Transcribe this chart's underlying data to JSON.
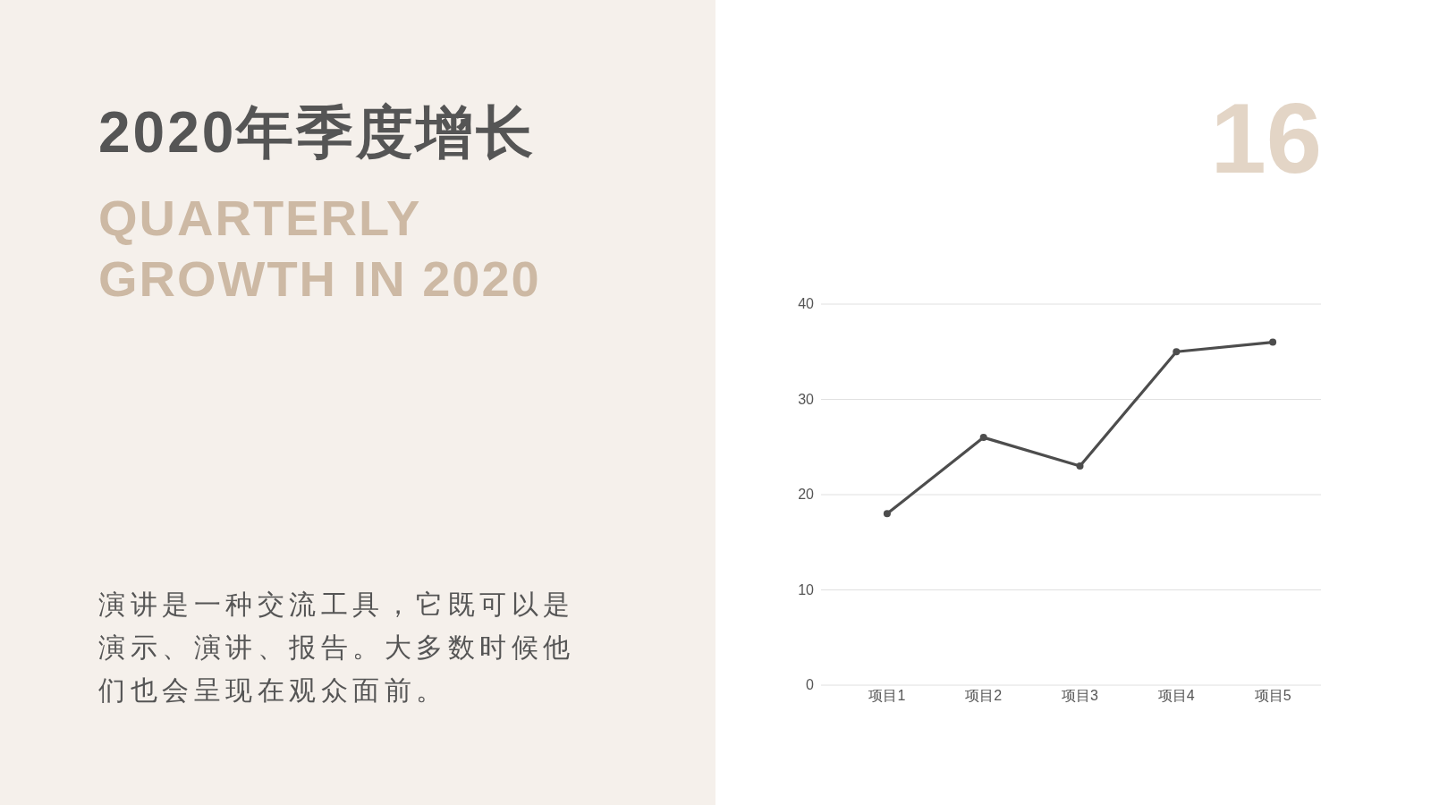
{
  "chart_data": {
    "type": "line",
    "title": "2020年季度增长",
    "subtitle": "QUARTERLY GROWTH IN 2020",
    "categories": [
      "项目1",
      "项目2",
      "项目3",
      "项目4",
      "项目5"
    ],
    "series": [
      {
        "color": "#4d4d4d",
        "values": [
          18,
          26,
          23,
          35,
          36
        ]
      }
    ],
    "ylim": [
      0,
      40
    ],
    "yticks": [
      0,
      10,
      20,
      30,
      40
    ],
    "grid": "y",
    "marker": "circle",
    "line_style": "solid",
    "annotations": [
      "16",
      "演讲是一种交流工具，它既可以是演示、演讲、报告。大多数时候他们也会呈现在观众面前。"
    ]
  }
}
